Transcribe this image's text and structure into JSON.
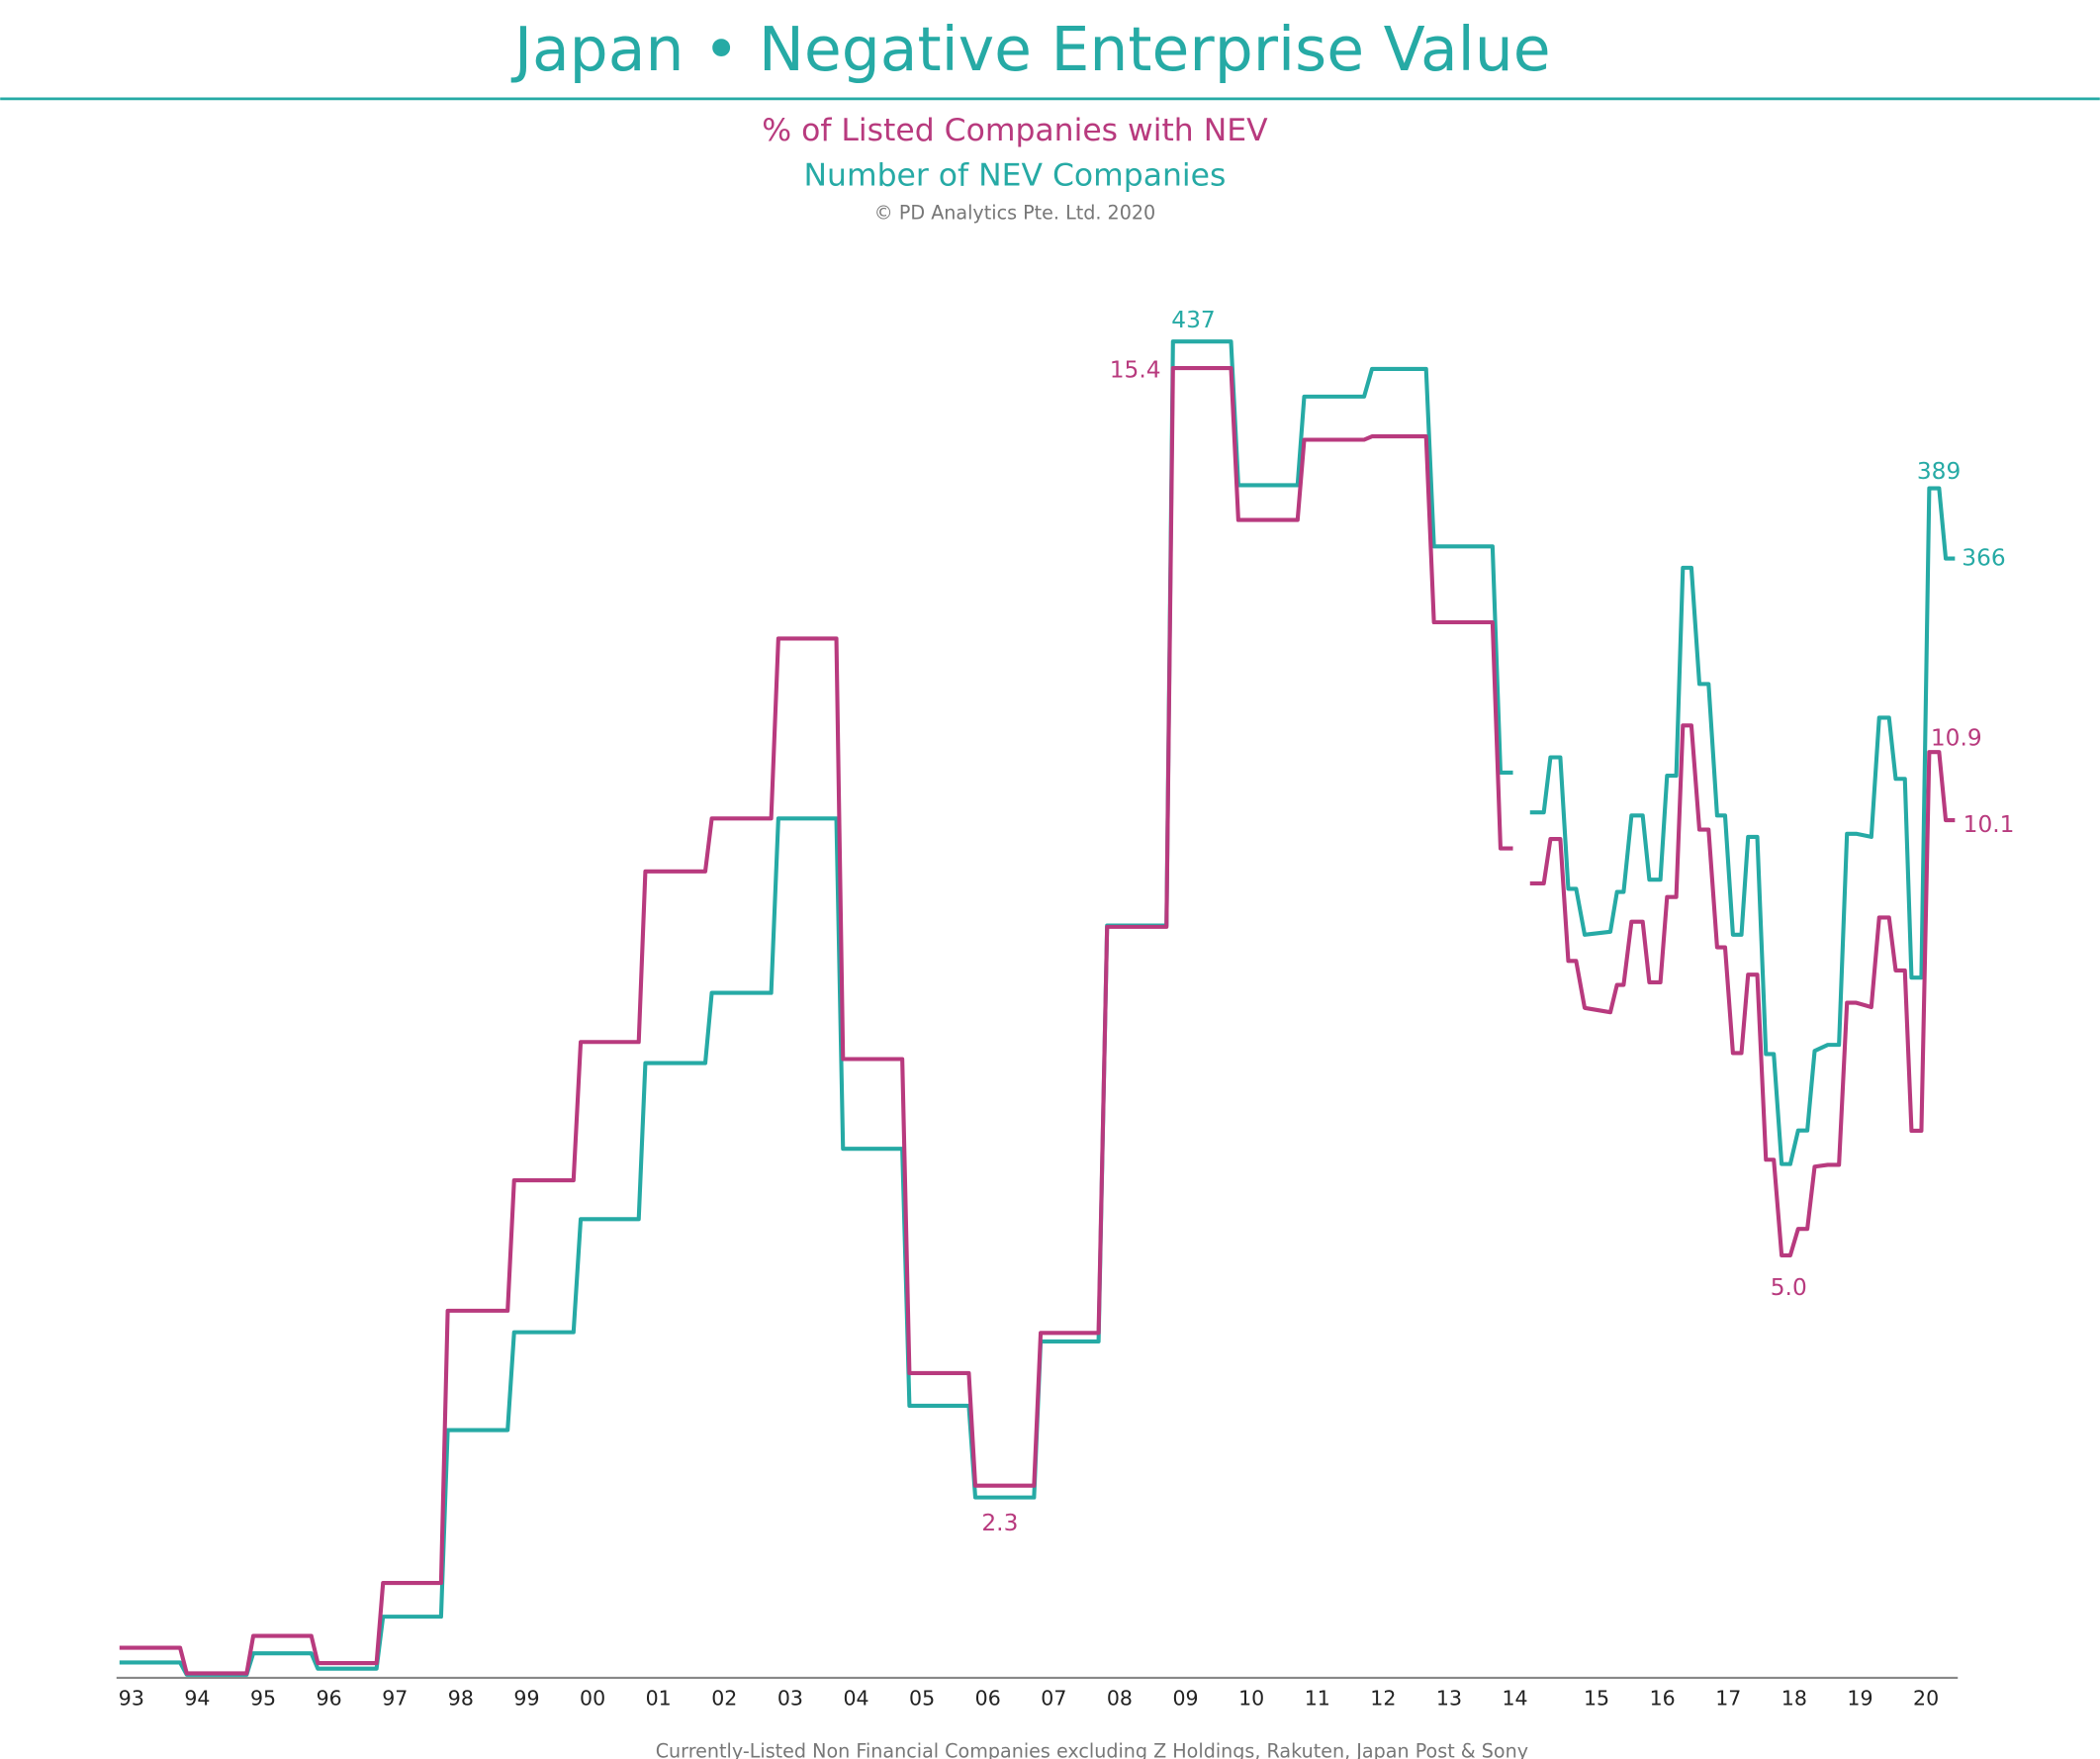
{
  "title": "Japan • Negative Enterprise Value",
  "copyright": "© PD Analytics Pte. Ltd. 2020",
  "footnote": "Currently-Listed Non Financial Companies excluding Z Holdings, Rakuten, Japan Post & Sony",
  "colors": {
    "pct": "#b83a7e",
    "count": "#26aaa5",
    "axis": "#888888"
  },
  "chart_data": {
    "type": "line",
    "step": true,
    "grid": false,
    "x_ticks": [
      "93",
      "94",
      "95",
      "96",
      "97",
      "98",
      "99",
      "00",
      "01",
      "02",
      "03",
      "04",
      "05",
      "06",
      "07",
      "08",
      "09",
      "10",
      "11",
      "12",
      "13",
      "14",
      "15",
      "16",
      "17",
      "18",
      "19",
      "20"
    ],
    "series": [
      {
        "name": "% of Listed Companies with NEV",
        "segments": [
          [
            [
              1992.82,
              0.4
            ],
            [
              1993.74,
              0.4
            ],
            [
              1993.84,
              0.1
            ],
            [
              1994.75,
              0.1
            ],
            [
              1994.85,
              0.54
            ],
            [
              1995.73,
              0.54
            ],
            [
              1995.83,
              0.22
            ],
            [
              1996.72,
              0.22
            ],
            [
              1996.82,
              1.16
            ],
            [
              1997.7,
              1.16
            ],
            [
              1997.8,
              4.35
            ],
            [
              1998.71,
              4.35
            ],
            [
              1998.81,
              5.88
            ],
            [
              1999.71,
              5.88
            ],
            [
              1999.82,
              7.5
            ],
            [
              2000.7,
              7.5
            ],
            [
              2000.8,
              9.5
            ],
            [
              2001.71,
              9.5
            ],
            [
              2001.81,
              10.12
            ],
            [
              2002.71,
              10.12
            ],
            [
              2002.82,
              12.23
            ],
            [
              2003.7,
              12.23
            ],
            [
              2003.8,
              7.3
            ],
            [
              2004.7,
              7.3
            ],
            [
              2004.81,
              3.62
            ],
            [
              2005.71,
              3.62
            ],
            [
              2005.81,
              2.3
            ],
            [
              2006.7,
              2.3
            ],
            [
              2006.8,
              4.09
            ],
            [
              2007.68,
              4.09
            ],
            [
              2007.81,
              8.85
            ],
            [
              2008.71,
              8.85
            ],
            [
              2008.81,
              15.4
            ],
            [
              2009.69,
              15.4
            ],
            [
              2009.8,
              13.62
            ],
            [
              2010.7,
              13.62
            ],
            [
              2010.8,
              14.56
            ],
            [
              2011.71,
              14.56
            ],
            [
              2011.83,
              14.6
            ],
            [
              2012.65,
              14.6
            ],
            [
              2012.77,
              12.42
            ],
            [
              2013.66,
              12.42
            ],
            [
              2013.78,
              9.77
            ],
            [
              2013.97,
              9.77
            ]
          ],
          [
            [
              2013.99,
              9.36
            ],
            [
              2014.2,
              9.36
            ],
            [
              2014.3,
              9.88
            ],
            [
              2014.45,
              9.88
            ],
            [
              2014.57,
              8.45
            ],
            [
              2014.69,
              8.45
            ],
            [
              2014.82,
              7.9
            ],
            [
              2015.21,
              7.85
            ],
            [
              2015.31,
              8.17
            ],
            [
              2015.41,
              8.17
            ],
            [
              2015.53,
              8.91
            ],
            [
              2015.7,
              8.91
            ],
            [
              2015.8,
              8.2
            ],
            [
              2015.97,
              8.2
            ],
            [
              2016.07,
              9.2
            ],
            [
              2016.21,
              9.2
            ],
            [
              2016.31,
              11.21
            ],
            [
              2016.44,
              11.21
            ],
            [
              2016.56,
              9.99
            ],
            [
              2016.7,
              9.99
            ],
            [
              2016.83,
              8.61
            ],
            [
              2016.95,
              8.61
            ],
            [
              2017.07,
              7.37
            ],
            [
              2017.2,
              7.37
            ],
            [
              2017.3,
              8.29
            ],
            [
              2017.44,
              8.29
            ],
            [
              2017.57,
              6.12
            ],
            [
              2017.69,
              6.12
            ],
            [
              2017.81,
              5.0
            ],
            [
              2017.94,
              5.0
            ],
            [
              2018.06,
              5.31
            ],
            [
              2018.2,
              5.31
            ],
            [
              2018.31,
              6.04
            ],
            [
              2018.51,
              6.06
            ],
            [
              2018.68,
              6.06
            ],
            [
              2018.8,
              7.96
            ],
            [
              2018.94,
              7.96
            ],
            [
              2019.17,
              7.91
            ],
            [
              2019.29,
              8.96
            ],
            [
              2019.44,
              8.96
            ],
            [
              2019.54,
              8.34
            ],
            [
              2019.68,
              8.34
            ],
            [
              2019.78,
              6.46
            ],
            [
              2019.93,
              6.46
            ],
            [
              2020.05,
              10.9
            ],
            [
              2020.2,
              10.9
            ],
            [
              2020.3,
              10.1
            ],
            [
              2020.44,
              10.1
            ]
          ]
        ]
      },
      {
        "name": "Number of NEV Companies",
        "segments": [
          [
            [
              1992.82,
              5
            ],
            [
              1993.74,
              5
            ],
            [
              1993.84,
              1
            ],
            [
              1994.75,
              1
            ],
            [
              1994.85,
              8
            ],
            [
              1995.73,
              8
            ],
            [
              1995.83,
              3
            ],
            [
              1996.72,
              3
            ],
            [
              1996.82,
              20
            ],
            [
              1997.7,
              20
            ],
            [
              1997.8,
              81
            ],
            [
              1998.71,
              81
            ],
            [
              1998.81,
              113
            ],
            [
              1999.71,
              113
            ],
            [
              1999.82,
              150
            ],
            [
              2000.7,
              150
            ],
            [
              2000.8,
              201
            ],
            [
              2001.71,
              201
            ],
            [
              2001.81,
              224
            ],
            [
              2002.71,
              224
            ],
            [
              2002.82,
              281
            ],
            [
              2003.7,
              281
            ],
            [
              2003.8,
              173
            ],
            [
              2004.7,
              173
            ],
            [
              2004.81,
              89
            ],
            [
              2005.71,
              89
            ],
            [
              2005.81,
              59
            ],
            [
              2006.7,
              59
            ],
            [
              2006.8,
              110
            ],
            [
              2007.68,
              110
            ],
            [
              2007.81,
              246
            ],
            [
              2008.71,
              246
            ],
            [
              2008.81,
              437
            ],
            [
              2009.69,
              437
            ],
            [
              2009.8,
              390
            ],
            [
              2010.7,
              390
            ],
            [
              2010.8,
              419
            ],
            [
              2011.71,
              419
            ],
            [
              2011.83,
              428
            ],
            [
              2012.65,
              428
            ],
            [
              2012.77,
              370
            ],
            [
              2013.66,
              370
            ],
            [
              2013.78,
              296
            ],
            [
              2013.97,
              296
            ]
          ],
          [
            [
              2013.99,
              283
            ],
            [
              2014.2,
              283
            ],
            [
              2014.3,
              301
            ],
            [
              2014.45,
              301
            ],
            [
              2014.57,
              258
            ],
            [
              2014.69,
              258
            ],
            [
              2014.82,
              243
            ],
            [
              2015.21,
              244
            ],
            [
              2015.31,
              257
            ],
            [
              2015.41,
              257
            ],
            [
              2015.53,
              282
            ],
            [
              2015.7,
              282
            ],
            [
              2015.8,
              261
            ],
            [
              2015.97,
              261
            ],
            [
              2016.07,
              295
            ],
            [
              2016.21,
              295
            ],
            [
              2016.31,
              363
            ],
            [
              2016.44,
              363
            ],
            [
              2016.56,
              325
            ],
            [
              2016.7,
              325
            ],
            [
              2016.83,
              282
            ],
            [
              2016.95,
              282
            ],
            [
              2017.07,
              243
            ],
            [
              2017.2,
              243
            ],
            [
              2017.3,
              275
            ],
            [
              2017.44,
              275
            ],
            [
              2017.57,
              204
            ],
            [
              2017.69,
              204
            ],
            [
              2017.81,
              168
            ],
            [
              2017.94,
              168
            ],
            [
              2018.06,
              179
            ],
            [
              2018.2,
              179
            ],
            [
              2018.31,
              205
            ],
            [
              2018.51,
              207
            ],
            [
              2018.68,
              207
            ],
            [
              2018.8,
              276
            ],
            [
              2018.94,
              276
            ],
            [
              2019.17,
              275
            ],
            [
              2019.29,
              314
            ],
            [
              2019.44,
              314
            ],
            [
              2019.54,
              294
            ],
            [
              2019.68,
              294
            ],
            [
              2019.78,
              229
            ],
            [
              2019.93,
              229
            ],
            [
              2020.05,
              389
            ],
            [
              2020.2,
              389
            ],
            [
              2020.3,
              366
            ],
            [
              2020.44,
              366
            ]
          ]
        ]
      }
    ],
    "annotations": {
      "count_peak": "437",
      "pct_peak": "15.4",
      "pct_low_2006": "2.3",
      "pct_low_2018": "5.0",
      "count_2020_high": "389",
      "count_latest": "366",
      "pct_2020_high": "10.9",
      "pct_latest": "10.1"
    }
  }
}
